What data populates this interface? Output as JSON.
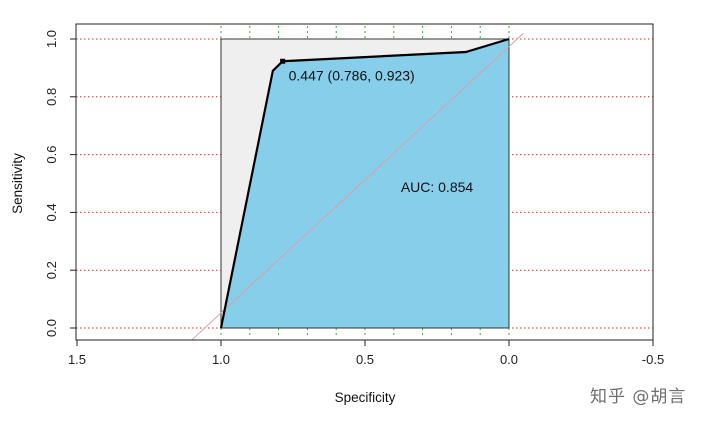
{
  "chart_data": {
    "type": "line",
    "xlabel": "Specificity",
    "ylabel": "Sensitivity",
    "xlim": [
      1.5,
      -0.5
    ],
    "ylim": [
      0,
      1
    ],
    "x_reversed": true,
    "x_ticks": [
      "1.5",
      "1.0",
      "0.5",
      "0.0",
      "-0.5"
    ],
    "x_tick_values": [
      1.5,
      1.0,
      0.5,
      0.0,
      -0.5
    ],
    "y_ticks": [
      "0.0",
      "0.2",
      "0.4",
      "0.6",
      "0.8",
      "1.0"
    ],
    "y_tick_values": [
      0.0,
      0.2,
      0.4,
      0.6,
      0.8,
      1.0
    ],
    "grid": true,
    "fill_color": "#87ceeb",
    "background_fill": "#efefef",
    "line_color": "#000000",
    "gridline_color": "#cc3333",
    "vgrid_color": "#33aa33",
    "diagonal_color": "#d9a0a0",
    "vgrid_x": [
      1.0,
      0.9,
      0.8,
      0.7,
      0.6,
      0.5,
      0.4,
      0.3,
      0.2,
      0.1,
      0.0
    ],
    "series": [
      {
        "x": [
          1.0,
          0.82,
          0.786,
          0.15,
          0.0
        ],
        "y": [
          0.0,
          0.89,
          0.923,
          0.955,
          1.0
        ]
      }
    ],
    "threshold_point": {
      "x": 0.786,
      "y": 0.923
    },
    "threshold_label": "0.447 (0.786, 0.923)",
    "auc_label": "AUC: 0.854",
    "auc_label_pos": {
      "x": 0.25,
      "y": 0.47
    }
  },
  "watermark": "知乎 @胡言"
}
